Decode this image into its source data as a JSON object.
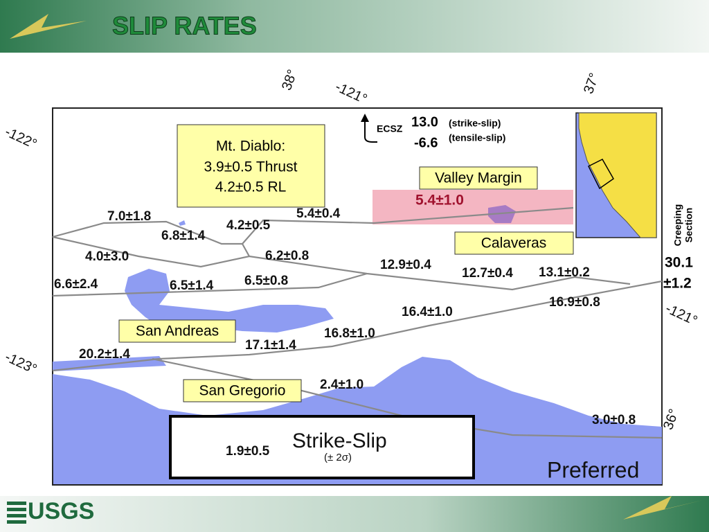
{
  "header": {
    "title": "SLIP RATES"
  },
  "footer": {
    "logo": "USGS"
  },
  "map": {
    "coordinates": [
      "38°",
      "-121°",
      "37°",
      "-122°",
      "-121°",
      "-123°",
      "36°"
    ],
    "ecsz": {
      "label": "ECSZ",
      "strike_value": "13.0",
      "strike_note": "(strike-slip)",
      "tensile_value": "-6.6",
      "tensile_note": "(tensile-slip)"
    },
    "mt_diablo": [
      "Mt. Diablo:",
      "3.9±0.5 Thrust",
      "4.2±0.5 RL"
    ],
    "fault_names": [
      "Valley Margin",
      "Calaveras",
      "San Andreas",
      "San Gregorio"
    ],
    "rates": [
      "7.0±1.8",
      "6.8±1.4",
      "4.2±0.5",
      "5.4±0.4",
      "5.4±1.0",
      "4.0±3.0",
      "6.2±0.8",
      "12.9±0.4",
      "12.7±0.4",
      "13.1±0.2",
      "6.6±2.4",
      "6.5±1.4",
      "6.5±0.8",
      "16.4±1.0",
      "16.9±0.8",
      "16.8±1.0",
      "17.1±1.4",
      "20.2±1.4",
      "2.4±1.0",
      "3.0±0.8"
    ],
    "creeping": {
      "label": [
        "Creeping",
        "Section"
      ],
      "value": "30.1",
      "error": "±1.2"
    },
    "legend": {
      "rate": "1.9±0.5",
      "title": "Strike-Slip",
      "note": "(± 2σ)"
    },
    "model": "Preferred"
  }
}
